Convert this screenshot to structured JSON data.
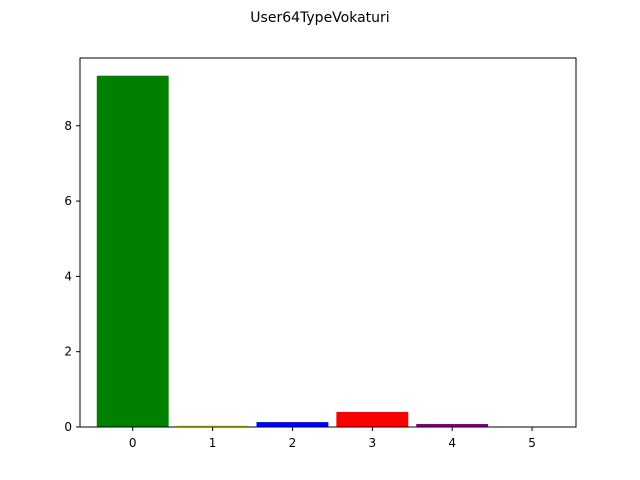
{
  "chart_data": {
    "type": "bar",
    "title": "User64TypeVokaturi",
    "xlabel": "",
    "ylabel": "",
    "categories": [
      "0",
      "1",
      "2",
      "3",
      "4",
      "5"
    ],
    "values": [
      9.33,
      0.05,
      0.13,
      0.4,
      0.08,
      0.0
    ],
    "colors": [
      "#008000",
      "#ffff00",
      "#0000ff",
      "#ff0000",
      "#800080",
      "#ffffff"
    ],
    "xlim": [
      -0.66,
      5.55
    ],
    "ylim": [
      0,
      9.8
    ],
    "yticks": [
      0,
      2,
      4,
      6,
      8
    ],
    "bar_width": 0.9,
    "grid": false,
    "legend": "none"
  }
}
